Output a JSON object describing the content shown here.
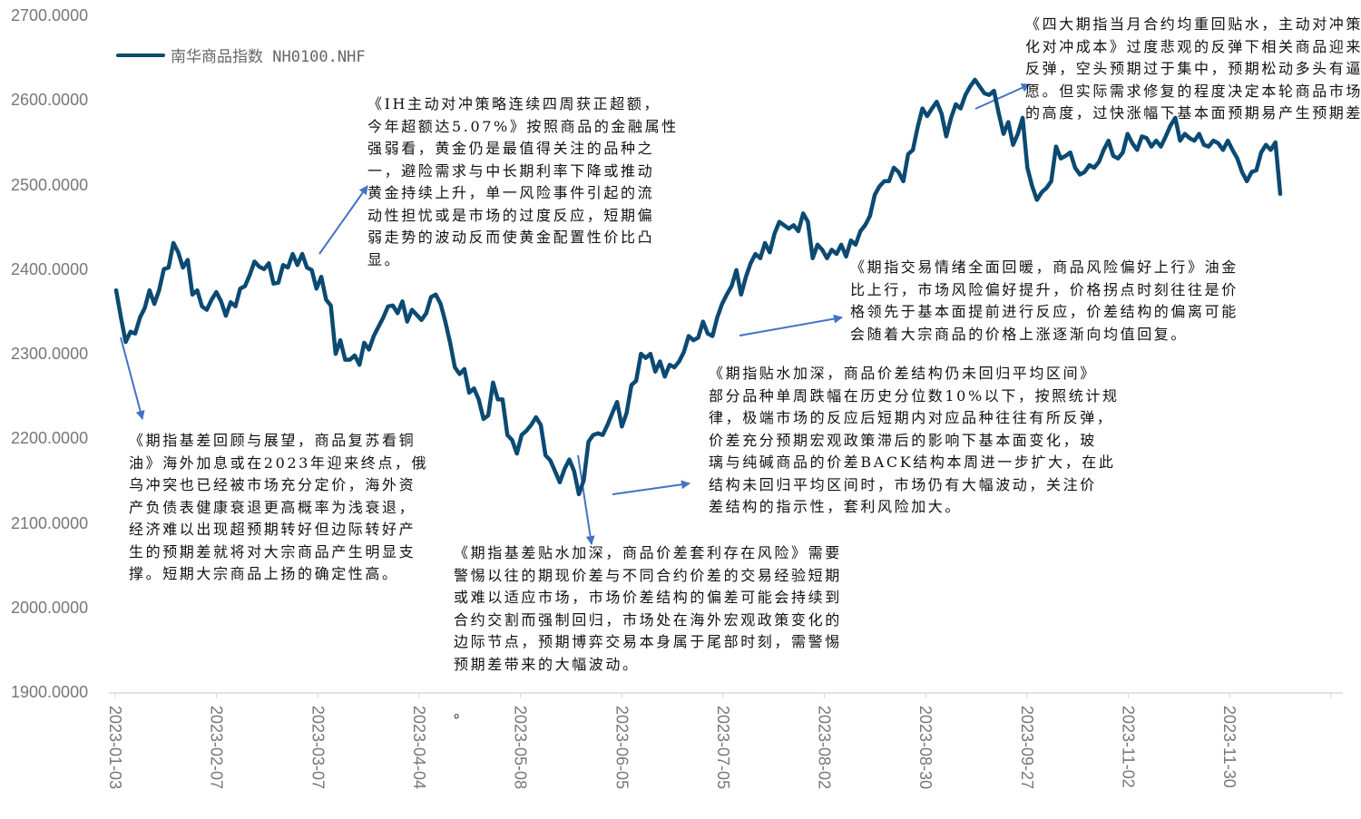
{
  "chart_data": {
    "type": "line",
    "title": "",
    "xlabel": "",
    "ylabel": "",
    "ylim": [
      1900,
      2700
    ],
    "y_ticks": [
      "2700.0000",
      "2600.0000",
      "2500.0000",
      "2400.0000",
      "2300.0000",
      "2200.0000",
      "2100.0000",
      "2000.0000",
      "1900.0000"
    ],
    "x_ticks": [
      "2023-01-03",
      "2023-02-07",
      "2023-03-07",
      "2023-04-04",
      "2023-05-08",
      "2023-06-05",
      "2023-07-05",
      "2023-08-02",
      "2023-08-30",
      "2023-09-27",
      "2023-11-02",
      "2023-11-30"
    ],
    "legend": {
      "position": "top-left",
      "label": "南华商品指数 NH0100.NHF"
    },
    "grid": false,
    "series": [
      {
        "name": "南华商品指数 NH0100.NHF",
        "color": "#0B4A72",
        "values": [
          2376,
          2344,
          2315,
          2327,
          2325,
          2344,
          2355,
          2376,
          2360,
          2376,
          2401,
          2403,
          2432,
          2421,
          2403,
          2412,
          2371,
          2376,
          2357,
          2353,
          2365,
          2374,
          2363,
          2346,
          2362,
          2357,
          2378,
          2381,
          2394,
          2410,
          2404,
          2401,
          2408,
          2384,
          2385,
          2406,
          2403,
          2419,
          2406,
          2419,
          2403,
          2400,
          2378,
          2392,
          2365,
          2358,
          2301,
          2317,
          2294,
          2294,
          2299,
          2288,
          2314,
          2306,
          2322,
          2333,
          2344,
          2357,
          2358,
          2349,
          2363,
          2339,
          2353,
          2347,
          2341,
          2349,
          2368,
          2371,
          2360,
          2339,
          2314,
          2285,
          2277,
          2283,
          2255,
          2260,
          2247,
          2224,
          2228,
          2267,
          2247,
          2247,
          2205,
          2199,
          2183,
          2205,
          2210,
          2217,
          2226,
          2217,
          2181,
          2175,
          2162,
          2149,
          2165,
          2176,
          2162,
          2135,
          2151,
          2197,
          2205,
          2207,
          2205,
          2217,
          2231,
          2244,
          2215,
          2231,
          2264,
          2269,
          2301,
          2296,
          2301,
          2280,
          2292,
          2274,
          2288,
          2285,
          2292,
          2303,
          2322,
          2317,
          2320,
          2339,
          2325,
          2322,
          2344,
          2360,
          2371,
          2381,
          2400,
          2371,
          2392,
          2408,
          2419,
          2414,
          2432,
          2421,
          2443,
          2457,
          2453,
          2449,
          2453,
          2446,
          2467,
          2457,
          2414,
          2430,
          2424,
          2414,
          2424,
          2419,
          2430,
          2416,
          2435,
          2430,
          2446,
          2453,
          2464,
          2489,
          2499,
          2505,
          2505,
          2521,
          2516,
          2505,
          2537,
          2542,
          2569,
          2591,
          2582,
          2591,
          2599,
          2585,
          2558,
          2580,
          2596,
          2591,
          2607,
          2617,
          2625,
          2617,
          2609,
          2607,
          2612,
          2585,
          2561,
          2575,
          2548,
          2561,
          2580,
          2521,
          2499,
          2483,
          2492,
          2497,
          2505,
          2546,
          2532,
          2535,
          2539,
          2521,
          2513,
          2516,
          2524,
          2521,
          2528,
          2542,
          2553,
          2535,
          2532,
          2539,
          2561,
          2550,
          2542,
          2558,
          2556,
          2546,
          2553,
          2546,
          2558,
          2571,
          2580,
          2553,
          2561,
          2556,
          2553,
          2561,
          2548,
          2546,
          2553,
          2550,
          2542,
          2553,
          2542,
          2532,
          2516,
          2505,
          2516,
          2518,
          2539,
          2548,
          2542,
          2551,
          2490
        ]
      }
    ],
    "annotation_color": "#4472C4",
    "annotations": [
      {
        "id": "a",
        "lines": [
          "《期指基差回顾与展望，商品复苏看铜",
          "油》海外加息或在2023年迎来终点，俄",
          "乌冲突也已经被市场充分定价，海外资",
          "产负债表健康衰退更高概率为浅衰退，",
          "经济难以出现超预期转好但边际转好产",
          "生的预期差就将对大宗商品产生明显支",
          "撑。短期大宗商品上扬的确定性高。"
        ]
      },
      {
        "id": "b",
        "lines": [
          "《IH主动对冲策略连续四周获正超额，",
          "今年超额达5.07%》按照商品的金融属性",
          "强弱看，黄金仍是最值得关注的品种之",
          "一，避险需求与中长期利率下降或推动",
          "黄金持续上升，单一风险事件引起的流",
          "动性担忧或是市场的过度反应，短期偏",
          "弱走势的波动反而使黄金配置性价比凸",
          "显。"
        ]
      },
      {
        "id": "c",
        "lines": [
          "《期指基差贴水加深，商品价差套利存在风险》需要",
          "警惕以往的期现价差与不同合约价差的交易经验短期",
          "或难以适应市场，市场价差结构的偏差可能会持续到",
          "合约交割而强制回归，市场处在海外宏观政策变化的",
          "边际节点，预期博弈交易本身属于尾部时刻，需警惕",
          "预期差带来的大幅波动。"
        ],
        "tail": "。"
      },
      {
        "id": "d",
        "lines": [
          "《期指贴水加深，商品价差结构仍未回归平均区间》",
          "部分品种单周跌幅在历史分位数10%以下，按照统计规",
          "律，极端市场的反应后短期内对应品种往往有所反弹，",
          "价差充分预期宏观政策滞后的影响下基本面变化，玻",
          "璃与纯碱商品的价差BACK结构本周进一步扩大，在此",
          "结构未回归平均区间时，市场仍有大幅波动，关注价",
          "差结构的指示性，套利风险加大。"
        ]
      },
      {
        "id": "e",
        "lines": [
          "《期指交易情绪全面回暖，商品风险偏好上行》油金",
          "比上行，市场风险偏好提升，价格拐点时刻往往是价",
          "格领先于基本面提前进行反应，价差结构的偏离可能",
          "会随着大宗商品的价格上涨逐渐向均值回复。"
        ]
      },
      {
        "id": "f",
        "lines": [
          "《四大期指当月合约均重回贴水，主动对冲策",
          "化对冲成本》过度悲观的反弹下相关商品迎来",
          "反弹，空头预期过于集中，预期松动多头有逼",
          "愿。但实际需求修复的程度决定本轮商品市场",
          "的高度，过快涨幅下基本面预期易产生预期差"
        ]
      }
    ]
  }
}
